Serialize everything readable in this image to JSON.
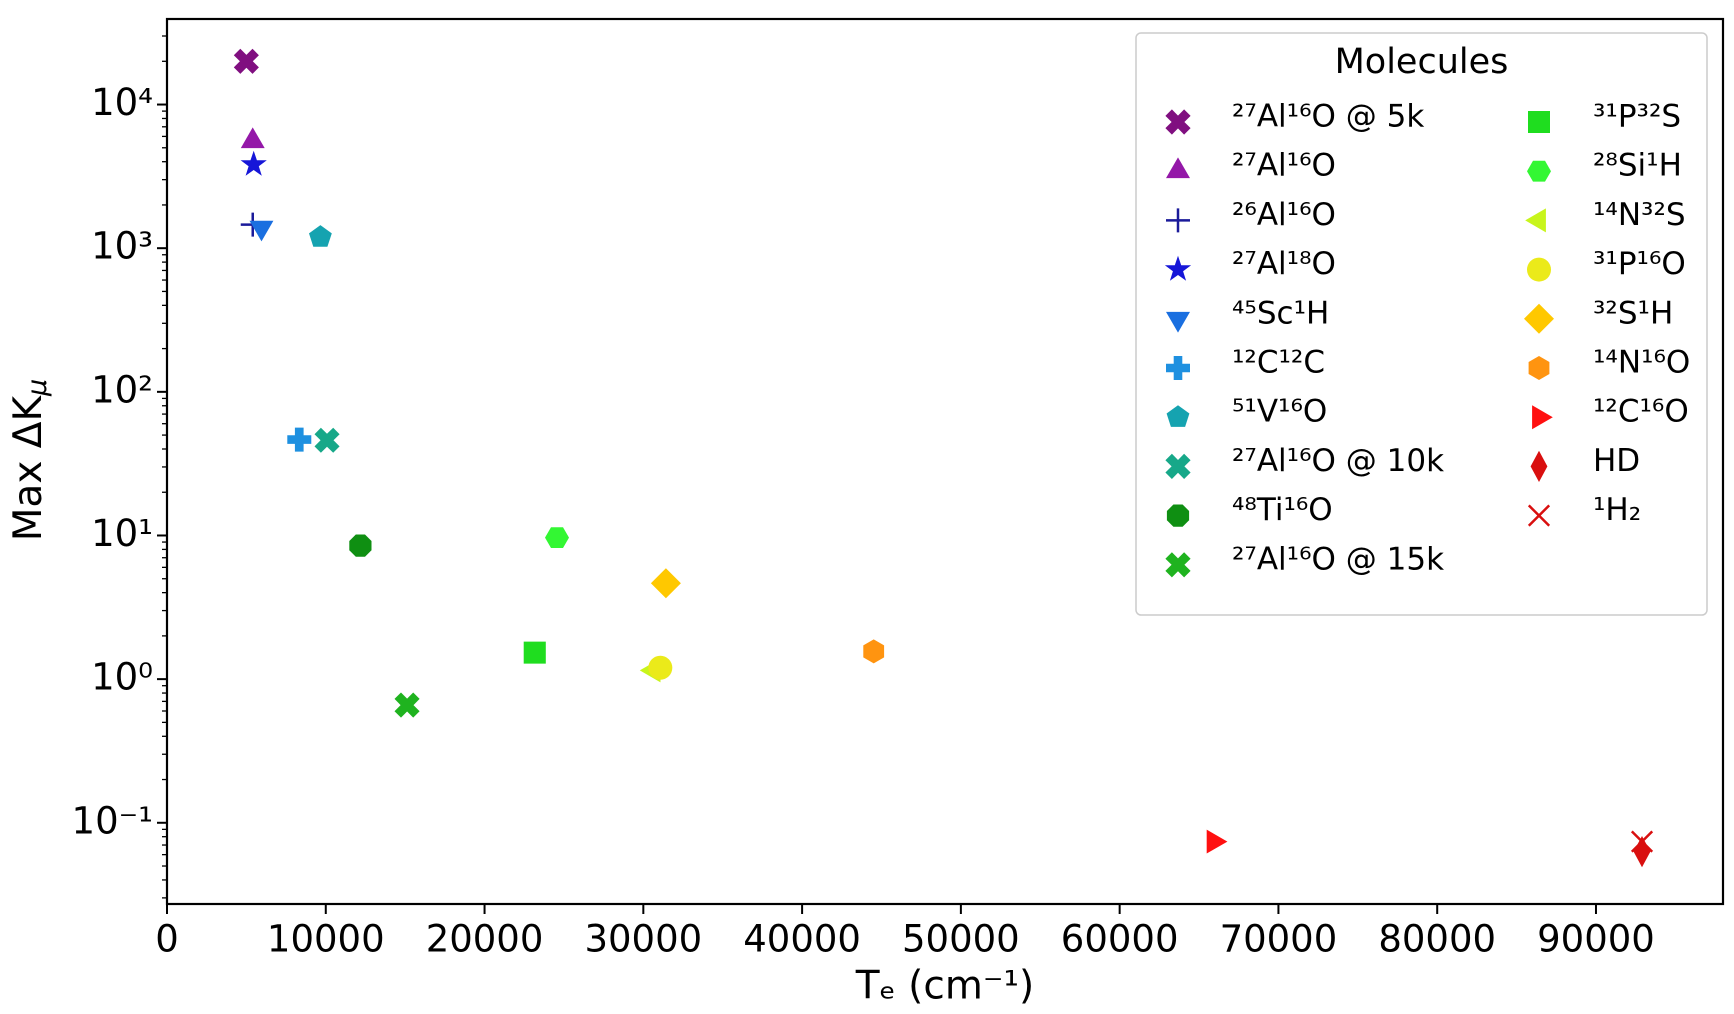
{
  "chart_data": {
    "type": "scatter",
    "xlabel": "Tₑ (cm⁻¹)",
    "ylabel": "Max ΔK",
    "ylabel_sub": "μ",
    "xlim": [
      0,
      98000
    ],
    "ylim": [
      0.0272,
      39400
    ],
    "log_y": true,
    "xticks": [
      0,
      10000,
      20000,
      30000,
      40000,
      50000,
      60000,
      70000,
      80000,
      90000
    ],
    "yticks": [
      {
        "value": 0.1,
        "label": "10⁻¹"
      },
      {
        "value": 1,
        "label": "10⁰"
      },
      {
        "value": 10,
        "label": "10¹"
      },
      {
        "value": 100,
        "label": "10²"
      },
      {
        "value": 1000,
        "label": "10³"
      },
      {
        "value": 10000,
        "label": "10⁴"
      }
    ],
    "grid": false,
    "legend": {
      "title": "Molecules",
      "loc": "upper right",
      "ncol": 2
    },
    "series": [
      {
        "name": "²⁷Al¹⁶O @ 5k",
        "color": "#800f80",
        "marker": "X",
        "x": [
          5000
        ],
        "values": [
          20000
        ]
      },
      {
        "name": "²⁷Al¹⁶O",
        "color": "#9418a8",
        "marker": "^",
        "x": [
          5400
        ],
        "values": [
          5560
        ]
      },
      {
        "name": "²⁶Al¹⁶O",
        "color": "#1a1a9a",
        "marker": "+",
        "x": [
          5400
        ],
        "values": [
          1460
        ]
      },
      {
        "name": "²⁷Al¹⁸O",
        "color": "#1616d8",
        "marker": "*",
        "x": [
          5460
        ],
        "values": [
          3820
        ]
      },
      {
        "name": "⁴⁵Sc¹H",
        "color": "#1a6fe0",
        "marker": "v",
        "x": [
          5950
        ],
        "values": [
          1390
        ]
      },
      {
        "name": "¹²C¹²C",
        "color": "#1e90e0",
        "marker": "P",
        "x": [
          8330
        ],
        "values": [
          46.5
        ]
      },
      {
        "name": "⁵¹V¹⁶O",
        "color": "#15a3b0",
        "marker": "p",
        "x": [
          9660
        ],
        "values": [
          1195
        ]
      },
      {
        "name": "²⁷Al¹⁶O @ 10k",
        "color": "#17a889",
        "marker": "X",
        "x": [
          10080
        ],
        "values": [
          46
        ]
      },
      {
        "name": "⁴⁸Ti¹⁶O",
        "color": "#0f8f12",
        "marker": "8",
        "x": [
          12180
        ],
        "values": [
          8.5
        ]
      },
      {
        "name": "²⁷Al¹⁶O @ 15k",
        "color": "#1fb31f",
        "marker": "X",
        "x": [
          15120
        ],
        "values": [
          0.66
        ]
      },
      {
        "name": "³¹P³²S",
        "color": "#1fdd1f",
        "marker": "s",
        "x": [
          23160
        ],
        "values": [
          1.53
        ]
      },
      {
        "name": "²⁸Si¹H",
        "color": "#33f733",
        "marker": "H",
        "x": [
          24560
        ],
        "values": [
          9.66
        ]
      },
      {
        "name": "¹⁴N³²S",
        "color": "#c8f51c",
        "marker": "<",
        "x": [
          30650
        ],
        "values": [
          1.15
        ]
      },
      {
        "name": "³¹P¹⁶O",
        "color": "#ebea1a",
        "marker": "o",
        "x": [
          31070
        ],
        "values": [
          1.2
        ]
      },
      {
        "name": "³²S¹H",
        "color": "#ffc800",
        "marker": "D",
        "x": [
          31420
        ],
        "values": [
          4.65
        ]
      },
      {
        "name": "¹⁴N¹⁶O",
        "color": "#ff9410",
        "marker": "h",
        "x": [
          44510
        ],
        "values": [
          1.56
        ]
      },
      {
        "name": "¹²C¹⁶O",
        "color": "#ff1010",
        "marker": ">",
        "x": [
          65920
        ],
        "values": [
          0.074
        ]
      },
      {
        "name": "HD",
        "color": "#d90f0f",
        "marker": "d",
        "x": [
          92900
        ],
        "values": [
          0.063
        ]
      },
      {
        "name": "¹H₂",
        "color": "#d90f0f",
        "marker": "x",
        "x": [
          92900
        ],
        "values": [
          0.074
        ]
      }
    ]
  }
}
